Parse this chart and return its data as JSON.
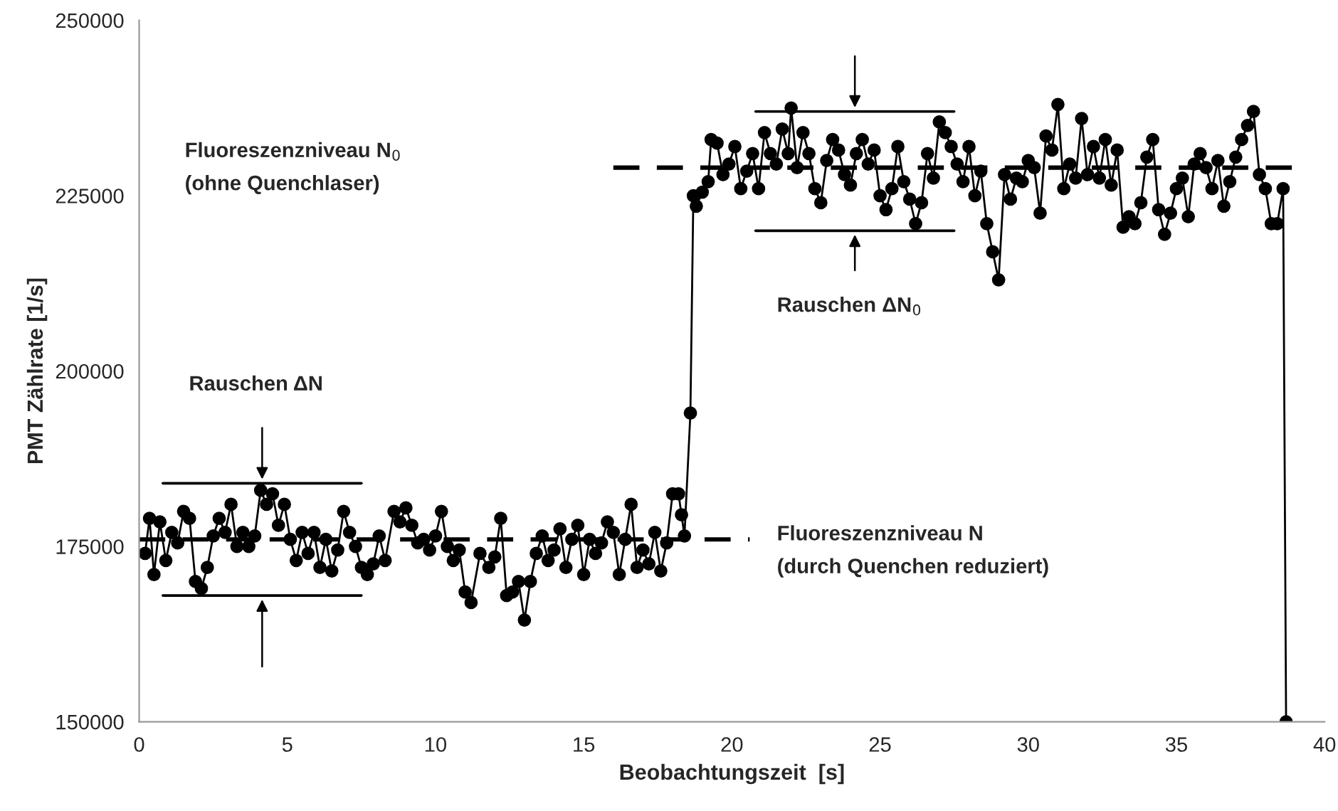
{
  "chart_data": {
    "type": "line",
    "xlabel": "Beobachtungszeit  [s]",
    "ylabel": "PMT Zählrate [1/s]",
    "xlim": [
      0,
      40
    ],
    "xticks": [
      0,
      5,
      10,
      15,
      20,
      25,
      30,
      35,
      40
    ],
    "ylim": [
      150000,
      250000
    ],
    "yticks": [
      150000,
      175000,
      200000,
      225000,
      250000
    ],
    "grid": false,
    "legend": false,
    "series": [
      {
        "color": "#000000",
        "marker": "circle",
        "line_style": "solid",
        "x": [
          0.2,
          0.35,
          0.5,
          0.7,
          0.9,
          1.1,
          1.3,
          1.5,
          1.7,
          1.9,
          2.1,
          2.3,
          2.5,
          2.7,
          2.9,
          3.1,
          3.3,
          3.5,
          3.7,
          3.9,
          4.1,
          4.3,
          4.5,
          4.7,
          4.9,
          5.1,
          5.3,
          5.5,
          5.7,
          5.9,
          6.1,
          6.3,
          6.5,
          6.7,
          6.9,
          7.1,
          7.3,
          7.5,
          7.7,
          7.9,
          8.1,
          8.3,
          8.6,
          8.8,
          9.0,
          9.2,
          9.4,
          9.6,
          9.8,
          10.0,
          10.2,
          10.4,
          10.6,
          10.8,
          11.0,
          11.2,
          11.5,
          11.8,
          12.0,
          12.2,
          12.4,
          12.6,
          12.8,
          13.0,
          13.2,
          13.4,
          13.6,
          13.8,
          14.0,
          14.2,
          14.4,
          14.6,
          14.8,
          15.0,
          15.2,
          15.4,
          15.6,
          15.8,
          16.0,
          16.2,
          16.4,
          16.6,
          16.8,
          17.0,
          17.2,
          17.4,
          17.6,
          17.8,
          18.0,
          18.2,
          18.3,
          18.4,
          18.6,
          18.7,
          18.8,
          19.0,
          19.2,
          19.3,
          19.5,
          19.7,
          19.9,
          20.1,
          20.3,
          20.5,
          20.7,
          20.9,
          21.1,
          21.3,
          21.5,
          21.7,
          21.9,
          22.0,
          22.2,
          22.4,
          22.6,
          22.8,
          23.0,
          23.2,
          23.4,
          23.6,
          23.8,
          24.0,
          24.2,
          24.4,
          24.6,
          24.8,
          25.0,
          25.2,
          25.4,
          25.6,
          25.8,
          26.0,
          26.2,
          26.4,
          26.6,
          26.8,
          27.0,
          27.2,
          27.4,
          27.6,
          27.8,
          28.0,
          28.2,
          28.4,
          28.6,
          28.8,
          29.0,
          29.2,
          29.4,
          29.6,
          29.8,
          30.0,
          30.2,
          30.4,
          30.6,
          30.8,
          31.0,
          31.2,
          31.4,
          31.6,
          31.8,
          32.0,
          32.2,
          32.4,
          32.6,
          32.8,
          33.0,
          33.2,
          33.4,
          33.6,
          33.8,
          34.0,
          34.2,
          34.4,
          34.6,
          34.8,
          35.0,
          35.2,
          35.4,
          35.6,
          35.8,
          36.0,
          36.2,
          36.4,
          36.6,
          36.8,
          37.0,
          37.2,
          37.4,
          37.6,
          37.8,
          38.0,
          38.2,
          38.4,
          38.6,
          38.7
        ],
        "values": [
          174000,
          179000,
          171000,
          178500,
          173000,
          177000,
          175500,
          180000,
          179000,
          170000,
          169000,
          172000,
          176500,
          179000,
          177000,
          181000,
          175000,
          177000,
          175000,
          176500,
          183000,
          181000,
          182500,
          178000,
          181000,
          176000,
          173000,
          177000,
          174000,
          177000,
          172000,
          176000,
          171500,
          174500,
          180000,
          177000,
          175000,
          172000,
          171000,
          172500,
          176500,
          173000,
          180000,
          178500,
          180500,
          178000,
          175500,
          176000,
          174500,
          176500,
          180000,
          175000,
          173000,
          174500,
          168500,
          167000,
          174000,
          172000,
          173500,
          179000,
          168000,
          168500,
          170000,
          164500,
          170000,
          174000,
          176500,
          173000,
          174500,
          177500,
          172000,
          176000,
          178000,
          171000,
          176000,
          174000,
          175500,
          178500,
          177000,
          171000,
          176000,
          181000,
          172000,
          174500,
          172500,
          177000,
          171500,
          175500,
          182500,
          182500,
          179500,
          176500,
          194000,
          225000,
          223500,
          225500,
          227000,
          233000,
          232500,
          228000,
          229500,
          232000,
          226000,
          228500,
          231000,
          226000,
          234000,
          231000,
          229500,
          234500,
          231000,
          237500,
          229000,
          234000,
          231000,
          226000,
          224000,
          230000,
          233000,
          231500,
          228000,
          226500,
          231000,
          233000,
          229500,
          231500,
          225000,
          223000,
          226000,
          232000,
          227000,
          224500,
          221000,
          224000,
          231000,
          227500,
          235500,
          234000,
          232000,
          229500,
          227000,
          232000,
          225000,
          228500,
          221000,
          217000,
          213000,
          228000,
          224500,
          227500,
          227000,
          230000,
          229000,
          222500,
          233500,
          231500,
          238000,
          226000,
          229500,
          227500,
          236000,
          228000,
          232000,
          227500,
          233000,
          226500,
          231500,
          220500,
          222000,
          221000,
          224000,
          230500,
          233000,
          223000,
          219500,
          222500,
          226000,
          227500,
          222000,
          229500,
          231000,
          229000,
          226000,
          230000,
          223500,
          227000,
          230500,
          233000,
          235000,
          237000,
          228000,
          226000,
          221000,
          221000,
          226000,
          150000
        ]
      },
      {
        "color": "#000000",
        "marker": "none",
        "line_style": "dashed",
        "x": [
          0,
          20.6
        ],
        "values": [
          176000,
          176000
        ]
      },
      {
        "color": "#000000",
        "marker": "none",
        "line_style": "dashed",
        "x": [
          16,
          39
        ],
        "values": [
          229000,
          229000
        ]
      },
      {
        "color": "#000000",
        "marker": "none",
        "line_style": "solid",
        "x": [
          0.8,
          7.5
        ],
        "values": [
          184000,
          184000
        ]
      },
      {
        "color": "#000000",
        "marker": "none",
        "line_style": "solid",
        "x": [
          0.8,
          7.5
        ],
        "values": [
          168000,
          168000
        ]
      },
      {
        "color": "#000000",
        "marker": "none",
        "line_style": "solid",
        "x": [
          20.8,
          27.5
        ],
        "values": [
          237000,
          237000
        ]
      },
      {
        "color": "#000000",
        "marker": "none",
        "line_style": "solid",
        "x": [
          20.8,
          27.5
        ],
        "values": [
          220000,
          220000
        ]
      }
    ],
    "annotations": [
      "Fluoreszenzniveau N$_{0}$\n(ohne Quenchlaser)",
      "Fluoreszenzniveau N\n(durch Quenchen reduziert)",
      "Rauschen ΔN",
      "Rauschen ΔN$_{0}$"
    ]
  }
}
